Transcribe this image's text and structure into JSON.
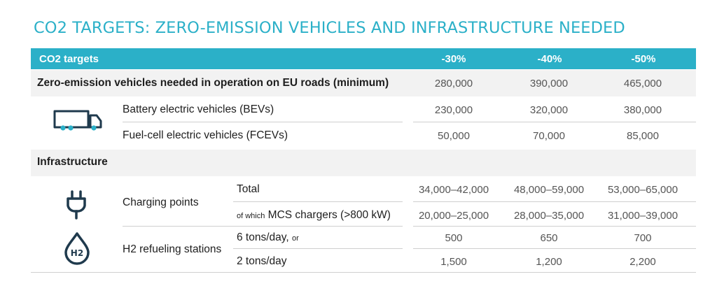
{
  "title": "CO2 TARGETS: ZERO-EMISSION VEHICLES AND INFRASTRUCTURE NEEDED",
  "header": {
    "label": "CO2 targets",
    "cols": [
      "-30%",
      "-40%",
      "-50%"
    ]
  },
  "zev": {
    "label": "Zero-emission vehicles needed in operation on EU roads (minimum)",
    "values": [
      "280,000",
      "390,000",
      "465,000"
    ],
    "bev": {
      "label": "Battery electric vehicles (BEVs)",
      "values": [
        "230,000",
        "320,000",
        "380,000"
      ]
    },
    "fcev": {
      "label": "Fuel-cell electric vehicles (FCEVs)",
      "values": [
        "50,000",
        "70,000",
        "85,000"
      ]
    }
  },
  "infra": {
    "label": "Infrastructure",
    "charging": {
      "label": "Charging points",
      "total": {
        "label": "Total",
        "values": [
          "34,000–42,000",
          "48,000–59,000",
          "53,000–65,000"
        ]
      },
      "mcs": {
        "prefix": "of which",
        "label": "MCS chargers (>800 kW)",
        "values": [
          "20,000–25,000",
          "28,000–35,000",
          "31,000–39,000"
        ]
      }
    },
    "h2": {
      "label": "H2 refueling stations",
      "icon_text": "H2",
      "six": {
        "label": "6 tons/day,",
        "suffix": "or",
        "values": [
          "500",
          "650",
          "700"
        ]
      },
      "two": {
        "label": "2 tons/day",
        "values": [
          "1,500",
          "1,200",
          "2,200"
        ]
      }
    }
  },
  "colors": {
    "accent": "#2bb0c8",
    "band": "#f2f2f2",
    "icon": "#1f3a4d"
  },
  "icons": {
    "truck": "truck-icon",
    "plug": "plug-icon",
    "h2": "hydrogen-drop-icon"
  }
}
